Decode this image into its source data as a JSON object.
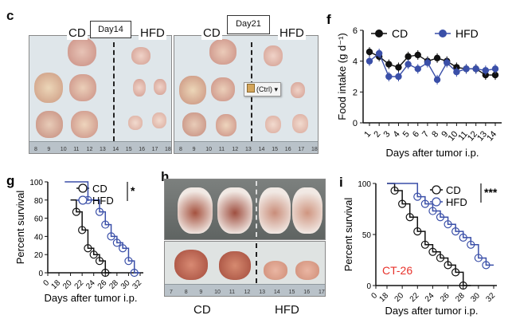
{
  "panels": {
    "c": {
      "label": "c",
      "day14": {
        "cd": "CD",
        "day": "Day14",
        "hfd": "HFD"
      },
      "day21": {
        "cd": "CD",
        "day": "Day21",
        "hfd": "HFD"
      },
      "ruler_numbers": [
        "8",
        "9",
        "10",
        "11",
        "12",
        "13",
        "14",
        "15",
        "16",
        "17",
        "18"
      ],
      "paste_button": "(Ctrl)"
    },
    "h": {
      "label": "h",
      "ruler_numbers": [
        "7",
        "8",
        "9",
        "10",
        "11",
        "12",
        "13",
        "14",
        "15",
        "16",
        "17"
      ],
      "cd": "CD",
      "hfd": "HFD"
    }
  },
  "chart_data": [
    {
      "panel": "f",
      "type": "line",
      "ylabel": "Food intake (g d⁻¹)",
      "xlabel": "Days after tumor i.p.",
      "ylim": [
        0,
        6
      ],
      "yticks": [
        "0",
        "2",
        "4",
        "6"
      ],
      "x": [
        1,
        2,
        3,
        4,
        5,
        6,
        7,
        8,
        9,
        10,
        11,
        12,
        13,
        14
      ],
      "series": [
        {
          "name": "CD",
          "color": "#111111",
          "values": [
            4.6,
            4.3,
            3.8,
            3.6,
            4.3,
            4.4,
            4.0,
            4.2,
            4.0,
            3.6,
            3.5,
            3.5,
            3.1,
            3.1
          ]
        },
        {
          "name": "HFD",
          "color": "#3a4fa8",
          "values": [
            4.0,
            4.5,
            3.0,
            3.0,
            3.8,
            3.5,
            3.9,
            2.8,
            3.9,
            3.3,
            3.5,
            3.5,
            3.4,
            3.5
          ]
        }
      ],
      "legend": "top"
    },
    {
      "panel": "g",
      "type": "line",
      "ylabel": "Percent survival",
      "xlabel": "Days after tumor i.p.",
      "ylim": [
        0,
        100
      ],
      "yticks": [
        "0",
        "20",
        "40",
        "60",
        "80",
        "100"
      ],
      "xticks": [
        "0",
        "18",
        "20",
        "22",
        "24",
        "26",
        "28",
        "30",
        "32"
      ],
      "series": [
        {
          "name": "CD",
          "color": "#111111",
          "x": [
            20,
            21,
            21,
            22,
            22,
            23,
            23,
            24,
            24,
            25,
            25,
            26,
            26,
            27
          ],
          "y": [
            80,
            80,
            67,
            67,
            47,
            47,
            27,
            27,
            20,
            20,
            13,
            13,
            0,
            0
          ]
        },
        {
          "name": "HFD",
          "color": "#3a4fa8",
          "x": [
            19,
            23,
            23,
            25,
            25,
            26,
            26,
            27,
            27,
            28,
            28,
            29,
            29,
            30,
            30,
            31,
            31,
            32
          ],
          "y": [
            100,
            100,
            80,
            80,
            67,
            67,
            53,
            53,
            40,
            40,
            33,
            33,
            27,
            27,
            13,
            13,
            0,
            0
          ]
        }
      ],
      "significance": "*",
      "legend": "top-right"
    },
    {
      "panel": "i",
      "type": "line",
      "ylabel": "Percent survival",
      "xlabel": "Days after tumor i.p.",
      "annotation": "CT-26",
      "ylim": [
        0,
        100
      ],
      "yticks": [
        "0",
        "50",
        "100"
      ],
      "xticks": [
        "0",
        "18",
        "20",
        "22",
        "24",
        "26",
        "28",
        "30",
        "32"
      ],
      "series": [
        {
          "name": "CD",
          "color": "#111111",
          "x": [
            18,
            19,
            19,
            20,
            20,
            21,
            21,
            22,
            22,
            23,
            23,
            24,
            24,
            25,
            25,
            26,
            26,
            27,
            27,
            28,
            28,
            29
          ],
          "y": [
            100,
            100,
            93,
            93,
            80,
            80,
            67,
            67,
            53,
            53,
            40,
            40,
            33,
            33,
            27,
            27,
            20,
            20,
            13,
            13,
            0,
            0
          ]
        },
        {
          "name": "HFD",
          "color": "#3a4fa8",
          "x": [
            18,
            22,
            22,
            23,
            23,
            24,
            24,
            25,
            25,
            26,
            26,
            27,
            27,
            28,
            28,
            29,
            29,
            30,
            30,
            31,
            31,
            32
          ],
          "y": [
            100,
            100,
            87,
            87,
            80,
            80,
            73,
            73,
            67,
            67,
            60,
            60,
            53,
            53,
            47,
            47,
            40,
            40,
            27,
            27,
            20,
            20
          ]
        }
      ],
      "significance": "***",
      "legend": "top-right"
    }
  ]
}
